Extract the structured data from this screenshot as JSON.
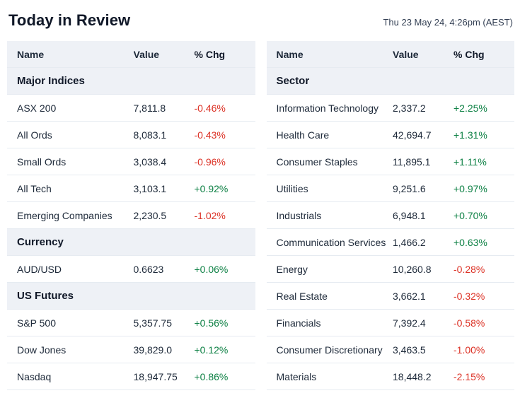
{
  "header": {
    "title": "Today in Review",
    "timestamp": "Thu 23 May 24, 4:26pm (AEST)"
  },
  "columns": {
    "name": "Name",
    "value": "Value",
    "chg": "% Chg"
  },
  "colors": {
    "positive": "#0e8145",
    "negative": "#dc3226",
    "header_bg": "#eef1f6",
    "row_border": "#e6ebf1"
  },
  "chart_data": [
    {
      "type": "table",
      "panel": "left",
      "columns": [
        "Name",
        "Value",
        "% Chg"
      ],
      "sections": [
        {
          "label": "Major Indices",
          "rows": [
            {
              "name": "ASX 200",
              "value": "7,811.8",
              "chg": "-0.46%"
            },
            {
              "name": "All Ords",
              "value": "8,083.1",
              "chg": "-0.43%"
            },
            {
              "name": "Small Ords",
              "value": "3,038.4",
              "chg": "-0.96%"
            },
            {
              "name": "All Tech",
              "value": "3,103.1",
              "chg": "+0.92%"
            },
            {
              "name": "Emerging Companies",
              "value": "2,230.5",
              "chg": "-1.02%"
            }
          ]
        },
        {
          "label": "Currency",
          "rows": [
            {
              "name": "AUD/USD",
              "value": "0.6623",
              "chg": "+0.06%"
            }
          ]
        },
        {
          "label": "US Futures",
          "rows": [
            {
              "name": "S&P 500",
              "value": "5,357.75",
              "chg": "+0.56%"
            },
            {
              "name": "Dow Jones",
              "value": "39,829.0",
              "chg": "+0.12%"
            },
            {
              "name": "Nasdaq",
              "value": "18,947.75",
              "chg": "+0.86%"
            }
          ]
        }
      ]
    },
    {
      "type": "table",
      "panel": "right",
      "columns": [
        "Name",
        "Value",
        "% Chg"
      ],
      "sections": [
        {
          "label": "Sector",
          "rows": [
            {
              "name": "Information Technology",
              "value": "2,337.2",
              "chg": "+2.25%"
            },
            {
              "name": "Health Care",
              "value": "42,694.7",
              "chg": "+1.31%"
            },
            {
              "name": "Consumer Staples",
              "value": "11,895.1",
              "chg": "+1.11%"
            },
            {
              "name": "Utilities",
              "value": "9,251.6",
              "chg": "+0.97%"
            },
            {
              "name": "Industrials",
              "value": "6,948.1",
              "chg": "+0.70%"
            },
            {
              "name": "Communication Services",
              "value": "1,466.2",
              "chg": "+0.63%"
            },
            {
              "name": "Energy",
              "value": "10,260.8",
              "chg": "-0.28%"
            },
            {
              "name": "Real Estate",
              "value": "3,662.1",
              "chg": "-0.32%"
            },
            {
              "name": "Financials",
              "value": "7,392.4",
              "chg": "-0.58%"
            },
            {
              "name": "Consumer Discretionary",
              "value": "3,463.5",
              "chg": "-1.00%"
            },
            {
              "name": "Materials",
              "value": "18,448.2",
              "chg": "-2.15%"
            }
          ]
        }
      ]
    }
  ]
}
